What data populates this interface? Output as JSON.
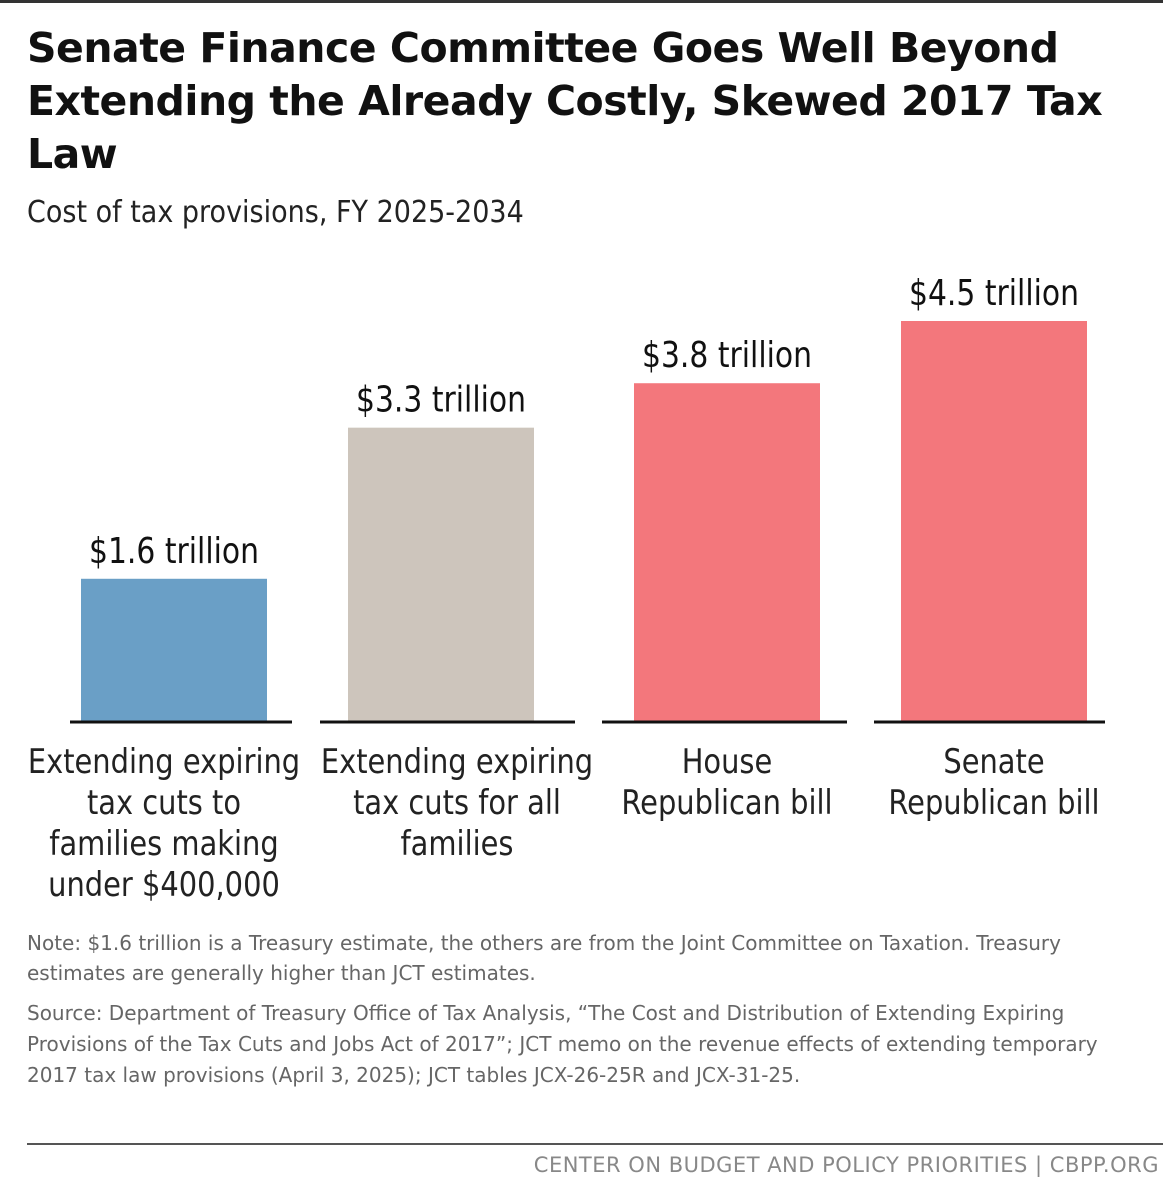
{
  "chart_data": {
    "type": "bar",
    "title": "Senate Finance Committee Goes Well Beyond Extending the Already Costly, Skewed 2017 Tax Law",
    "subtitle": "Cost of tax provisions, FY 2025-2034",
    "categories": [
      "Extending expiring tax cuts to families making under $400,000",
      "Extending expiring tax cuts for all families",
      "House Republican bill",
      "Senate Republican bill"
    ],
    "category_lines": [
      [
        "Extending expiring",
        "tax cuts to",
        "families making",
        "under $400,000"
      ],
      [
        "Extending expiring",
        "tax cuts for all",
        "families"
      ],
      [
        "House",
        "Republican bill"
      ],
      [
        "Senate",
        "Republican bill"
      ]
    ],
    "values": [
      1.6,
      3.3,
      3.8,
      4.5
    ],
    "value_labels": [
      "$1.6 trillion",
      "$3.3 trillion",
      "$3.8 trillion",
      "$4.5 trillion"
    ],
    "unit": "trillion dollars",
    "colors": [
      "#6a9fc6",
      "#cdc5bc",
      "#f3777c",
      "#f3777c"
    ],
    "ylim": [
      0,
      4.5
    ],
    "grid": false,
    "legend": false
  },
  "note": "Note: $1.6 trillion is a Treasury estimate, the others are from the Joint Committee on Taxation. Treasury estimates are generally higher than JCT estimates.",
  "source": "Source: Department of Treasury Office of Tax Analysis, “The Cost and Distribution of Extending Expiring Provisions of the Tax Cuts and Jobs Act of 2017”; JCT memo on the revenue effects of extending temporary 2017 tax law provisions (April 3, 2025); JCT tables JCX-26-25R and JCX-31-25.",
  "footer": "CENTER ON BUDGET AND POLICY PRIORITIES | CBPP.ORG"
}
